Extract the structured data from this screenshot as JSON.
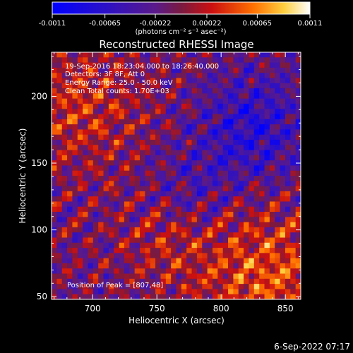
{
  "chart_data": {
    "type": "heatmap",
    "title": "Reconstructed RHESSI Image",
    "xlabel": "Heliocentric X (arcsec)",
    "ylabel": "Heliocentric Y (arcsec)",
    "xlim": [
      668,
      862
    ],
    "ylim": [
      48,
      233
    ],
    "x_ticks": [
      700,
      750,
      800,
      850
    ],
    "y_ticks": [
      50,
      100,
      150,
      200
    ],
    "colorbar": {
      "ticks": [
        -0.0011,
        -0.00065,
        -0.00022,
        0.00022,
        0.00065,
        0.0011
      ],
      "tick_labels": [
        "-0.0011",
        "-0.00065",
        "-0.00022",
        "0.00022",
        "0.00065",
        "0.0011"
      ],
      "range": [
        -0.0011,
        0.0011
      ],
      "unit_label": "(photons cm⁻² s⁻¹ asec⁻²)"
    },
    "info_lines": [
      "19-Sep-2016 18:23:04.000 to 18:26:40.000",
      "Detectors: 3F 8F, Att 0",
      "Energy Range: 25.0 - 50.0 keV",
      "Clean    Total counts: 1.70E+03"
    ],
    "peak_label": "Position of Peak = [807,48]",
    "peak": [
      807,
      48
    ]
  },
  "footer": {
    "timestamp": "6-Sep-2022 07:17"
  },
  "colors": {
    "background": "#000000",
    "foreground": "#ffffff",
    "colormap_low": "#0000ff",
    "colormap_mid": "#4b0082",
    "colormap_high": "#ffffff"
  }
}
